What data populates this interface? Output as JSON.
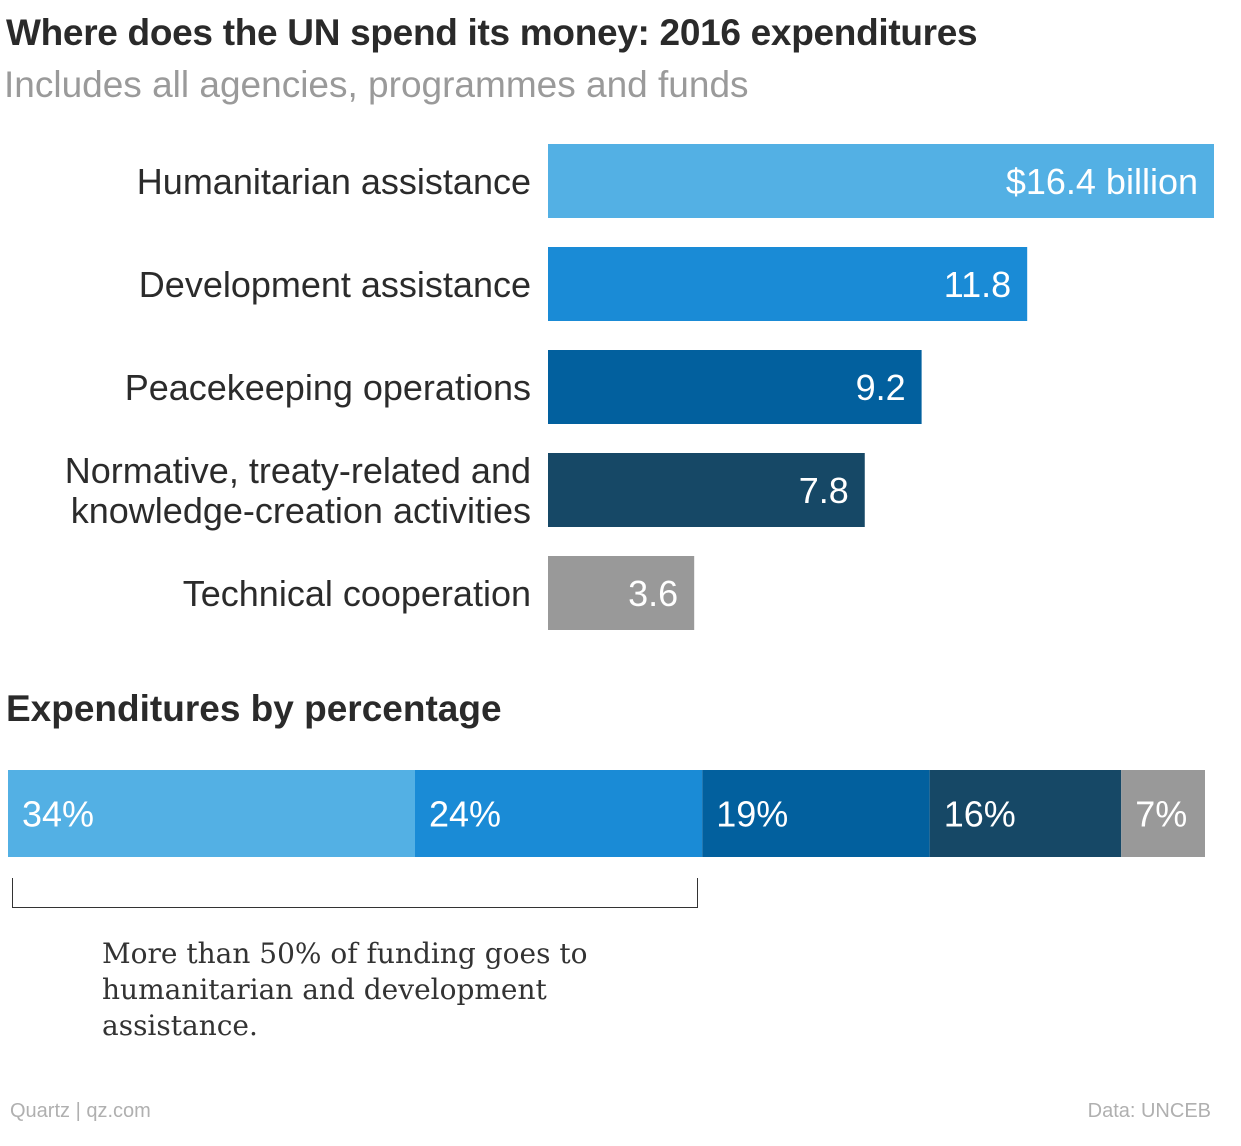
{
  "title": "Where does the UN spend its money: 2016 expenditures",
  "subtitle": "Includes all agencies, programmes and funds",
  "section_title": "Expenditures by percentage",
  "annotation": "More than 50% of funding goes to humanitarian and development assistance.",
  "credit": "Quartz | qz.com",
  "source": "Data: UNCEB",
  "colors": {
    "humanitarian": "#53b0e4",
    "development": "#1a8bd6",
    "peacekeeping": "#02609e",
    "normative": "#164866",
    "technical": "#999999"
  },
  "chart_data": [
    {
      "type": "bar",
      "orientation": "horizontal",
      "title": "Where does the UN spend its money: 2016 expenditures",
      "subtitle": "Includes all agencies, programmes and funds",
      "categories": [
        [
          "Humanitarian assistance"
        ],
        [
          "Development assistance"
        ],
        [
          "Peacekeeping operations"
        ],
        [
          "Normative, treaty-related and",
          "knowledge-creation activities"
        ],
        [
          "Technical cooperation"
        ]
      ],
      "values": [
        16.4,
        11.8,
        9.2,
        7.8,
        3.6
      ],
      "value_labels": [
        "$16.4 billion",
        "11.8",
        "9.2",
        "7.8",
        "3.6"
      ],
      "colors": [
        "#53b0e4",
        "#1a8bd6",
        "#02609e",
        "#164866",
        "#999999"
      ],
      "xlim": [
        0,
        16.4
      ],
      "grid": false
    },
    {
      "type": "bar",
      "orientation": "stacked-horizontal",
      "title": "Expenditures by percentage",
      "values": [
        34,
        24,
        19,
        16,
        7
      ],
      "value_labels": [
        "34%",
        "24%",
        "19%",
        "16%",
        "7%"
      ],
      "colors": [
        "#53b0e4",
        "#1a8bd6",
        "#02609e",
        "#164866",
        "#999999"
      ],
      "total": 100,
      "grid": false
    }
  ]
}
